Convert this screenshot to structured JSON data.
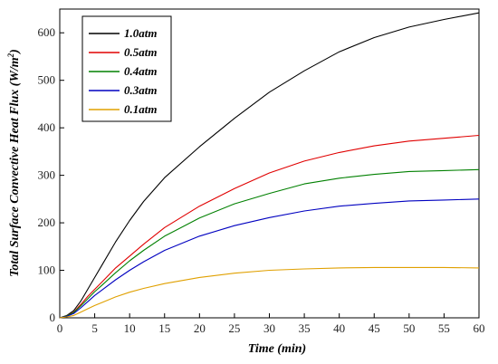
{
  "chart_data": {
    "type": "line",
    "title": "",
    "xlabel": "Time (min)",
    "ylabel_main": "Total Surface Convective Heat Flux (W/m",
    "ylabel_sup": "2",
    "ylabel_close": ")",
    "xlim": [
      0,
      60
    ],
    "ylim": [
      0,
      650
    ],
    "xticks": [
      0,
      5,
      10,
      15,
      20,
      25,
      30,
      35,
      40,
      45,
      50,
      55,
      60
    ],
    "yticks": [
      0,
      100,
      200,
      300,
      400,
      500,
      600
    ],
    "grid": false,
    "legend_position": "top-left",
    "x": [
      0,
      1,
      2,
      3,
      4,
      5,
      6,
      8,
      10,
      12,
      15,
      20,
      25,
      30,
      35,
      40,
      45,
      50,
      55,
      60
    ],
    "series": [
      {
        "name": "1.0atm",
        "color": "#000000",
        "values": [
          0,
          5,
          15,
          35,
          60,
          85,
          110,
          160,
          205,
          245,
          295,
          360,
          420,
          475,
          520,
          560,
          590,
          612,
          628,
          642
        ]
      },
      {
        "name": "0.5atm",
        "color": "#e00000",
        "values": [
          0,
          4,
          12,
          28,
          45,
          60,
          75,
          105,
          130,
          155,
          190,
          235,
          272,
          305,
          330,
          348,
          362,
          372,
          378,
          384
        ]
      },
      {
        "name": "0.4atm",
        "color": "#008000",
        "values": [
          0,
          4,
          11,
          25,
          40,
          55,
          68,
          95,
          120,
          142,
          172,
          210,
          240,
          262,
          282,
          294,
          302,
          308,
          310,
          312
        ]
      },
      {
        "name": "0.3atm",
        "color": "#0000c0",
        "values": [
          0,
          3,
          9,
          21,
          34,
          47,
          58,
          80,
          100,
          118,
          142,
          172,
          194,
          211,
          225,
          235,
          241,
          246,
          248,
          250
        ]
      },
      {
        "name": "0.1atm",
        "color": "#e0a000",
        "values": [
          0,
          2,
          5,
          12,
          19,
          26,
          32,
          44,
          54,
          62,
          72,
          85,
          94,
          100,
          103,
          105,
          106,
          106,
          106,
          105
        ]
      }
    ]
  }
}
